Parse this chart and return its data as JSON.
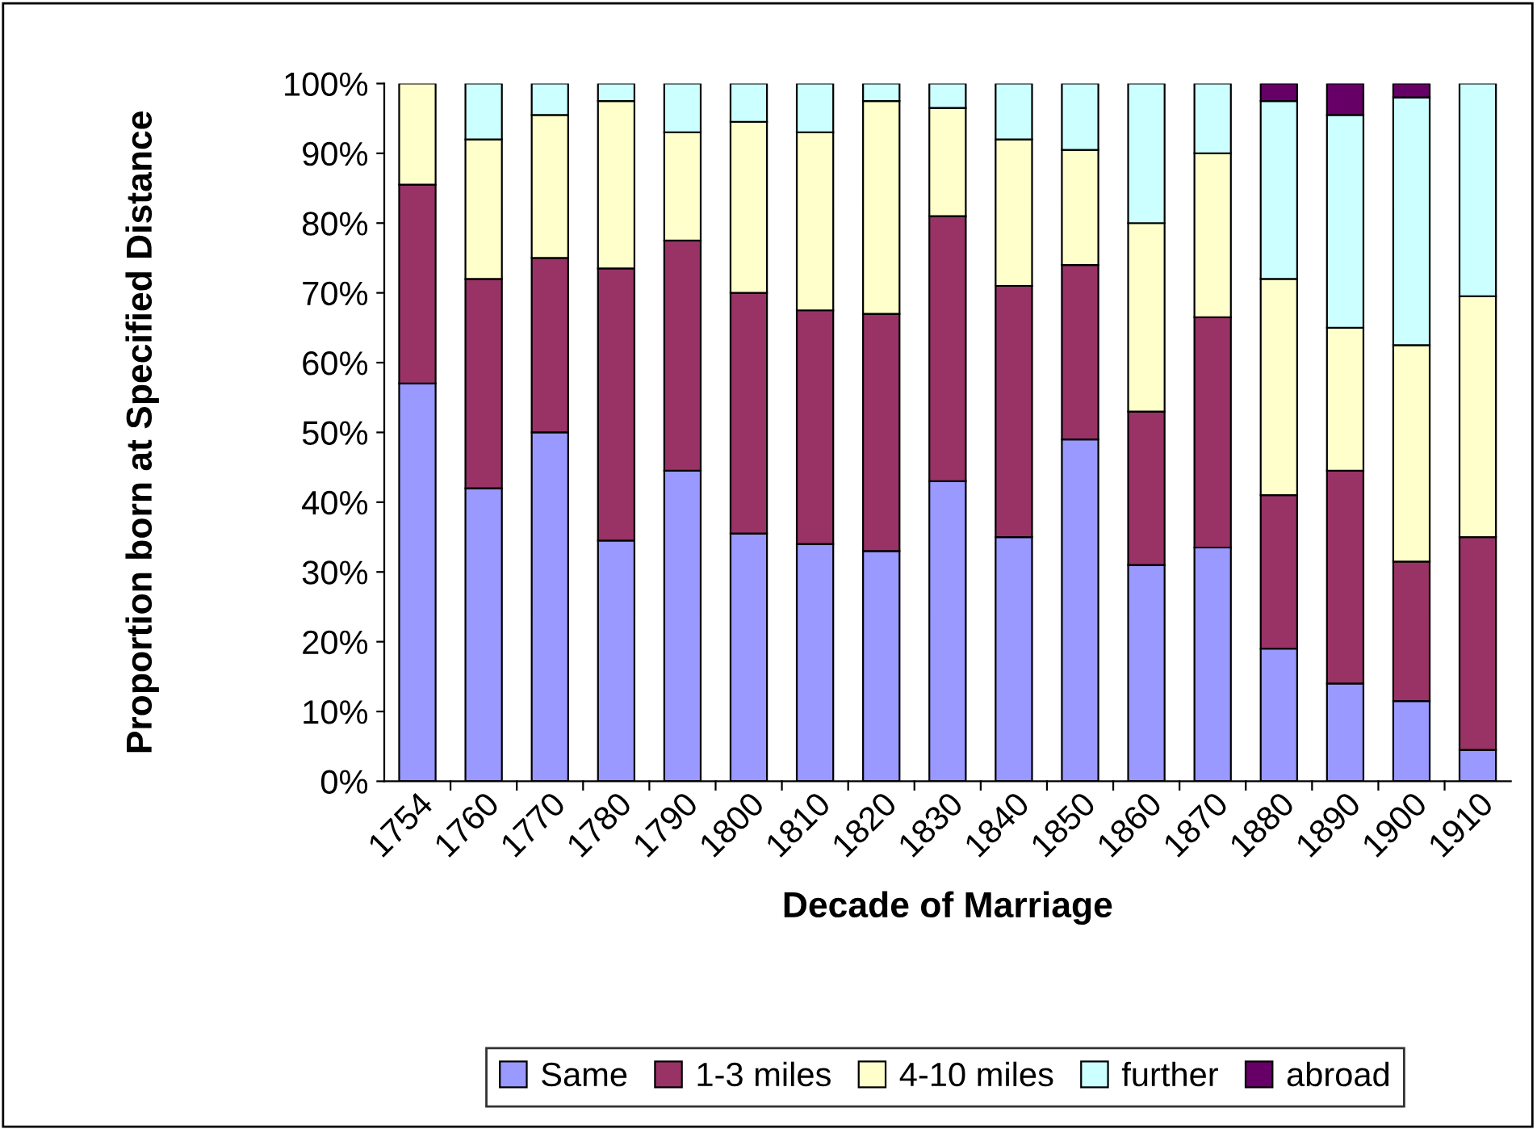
{
  "chart_data": {
    "type": "bar",
    "stacked": true,
    "xlabel": "Decade of Marriage",
    "ylabel": "Proportion born at Specified Distance",
    "categories": [
      "1754",
      "1760",
      "1770",
      "1780",
      "1790",
      "1800",
      "1810",
      "1820",
      "1830",
      "1840",
      "1850",
      "1860",
      "1870",
      "1880",
      "1890",
      "1900",
      "1910"
    ],
    "series": [
      {
        "name": "Same",
        "color": "#9999ff",
        "values": [
          57,
          42,
          50,
          34.5,
          44.5,
          35.5,
          34,
          33,
          43,
          35,
          49,
          31,
          33.5,
          19,
          14,
          11.5,
          4.5
        ]
      },
      {
        "name": "1-3 miles",
        "color": "#993366",
        "values": [
          28.5,
          30,
          25,
          39,
          33,
          34.5,
          33.5,
          34,
          38,
          36,
          25,
          22,
          33,
          22,
          30.5,
          20,
          30.5
        ]
      },
      {
        "name": "4-10 miles",
        "color": "#ffffcc",
        "values": [
          14.5,
          20,
          20.5,
          24,
          15.5,
          24.5,
          25.5,
          30.5,
          15.5,
          21,
          16.5,
          27,
          23.5,
          31,
          20.5,
          31,
          34.5
        ]
      },
      {
        "name": "further",
        "color": "#ccffff",
        "values": [
          null,
          8,
          4.5,
          2.5,
          7,
          5.5,
          7,
          2.5,
          3.5,
          8,
          9.5,
          20,
          10,
          25.5,
          30.5,
          35.5,
          30.5
        ]
      },
      {
        "name": "abroad",
        "color": "#660066",
        "values": [
          null,
          null,
          null,
          null,
          null,
          null,
          null,
          null,
          null,
          null,
          null,
          null,
          null,
          2.5,
          4.5,
          2,
          null
        ]
      }
    ],
    "ylim": [
      0,
      100
    ],
    "yticks": [
      {
        "value": 0,
        "label": "0%"
      },
      {
        "value": 10,
        "label": "10%"
      },
      {
        "value": 20,
        "label": "20%"
      },
      {
        "value": 30,
        "label": "30%"
      },
      {
        "value": 40,
        "label": "40%"
      },
      {
        "value": 50,
        "label": "50%"
      },
      {
        "value": 60,
        "label": "60%"
      },
      {
        "value": 70,
        "label": "70%"
      },
      {
        "value": 80,
        "label": "80%"
      },
      {
        "value": 90,
        "label": "90%"
      },
      {
        "value": 100,
        "label": "100%"
      }
    ],
    "grid": false,
    "legend": "bottom"
  }
}
